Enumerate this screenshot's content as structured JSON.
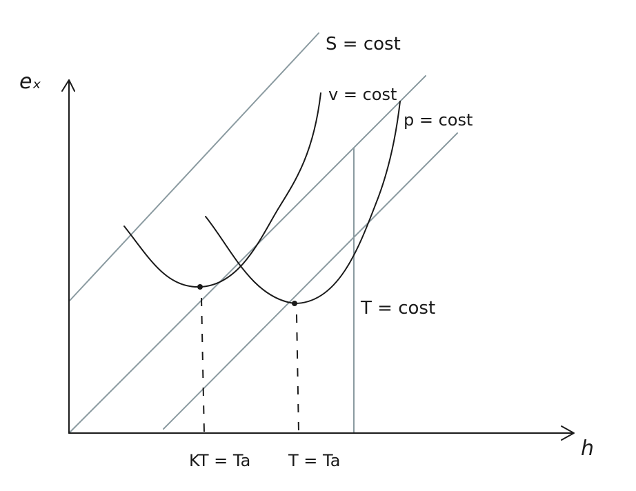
{
  "axes": {
    "y_label": "eₓ",
    "x_label": "h"
  },
  "isolines": {
    "s": "S = cost",
    "v": "v = cost",
    "p": "p = cost",
    "t": "T = cost"
  },
  "ticks": {
    "left": "KT = Ta",
    "right": "T = Ta"
  },
  "colors": {
    "isoline": "#8a9aa0",
    "ink": "#1a1a1a"
  }
}
